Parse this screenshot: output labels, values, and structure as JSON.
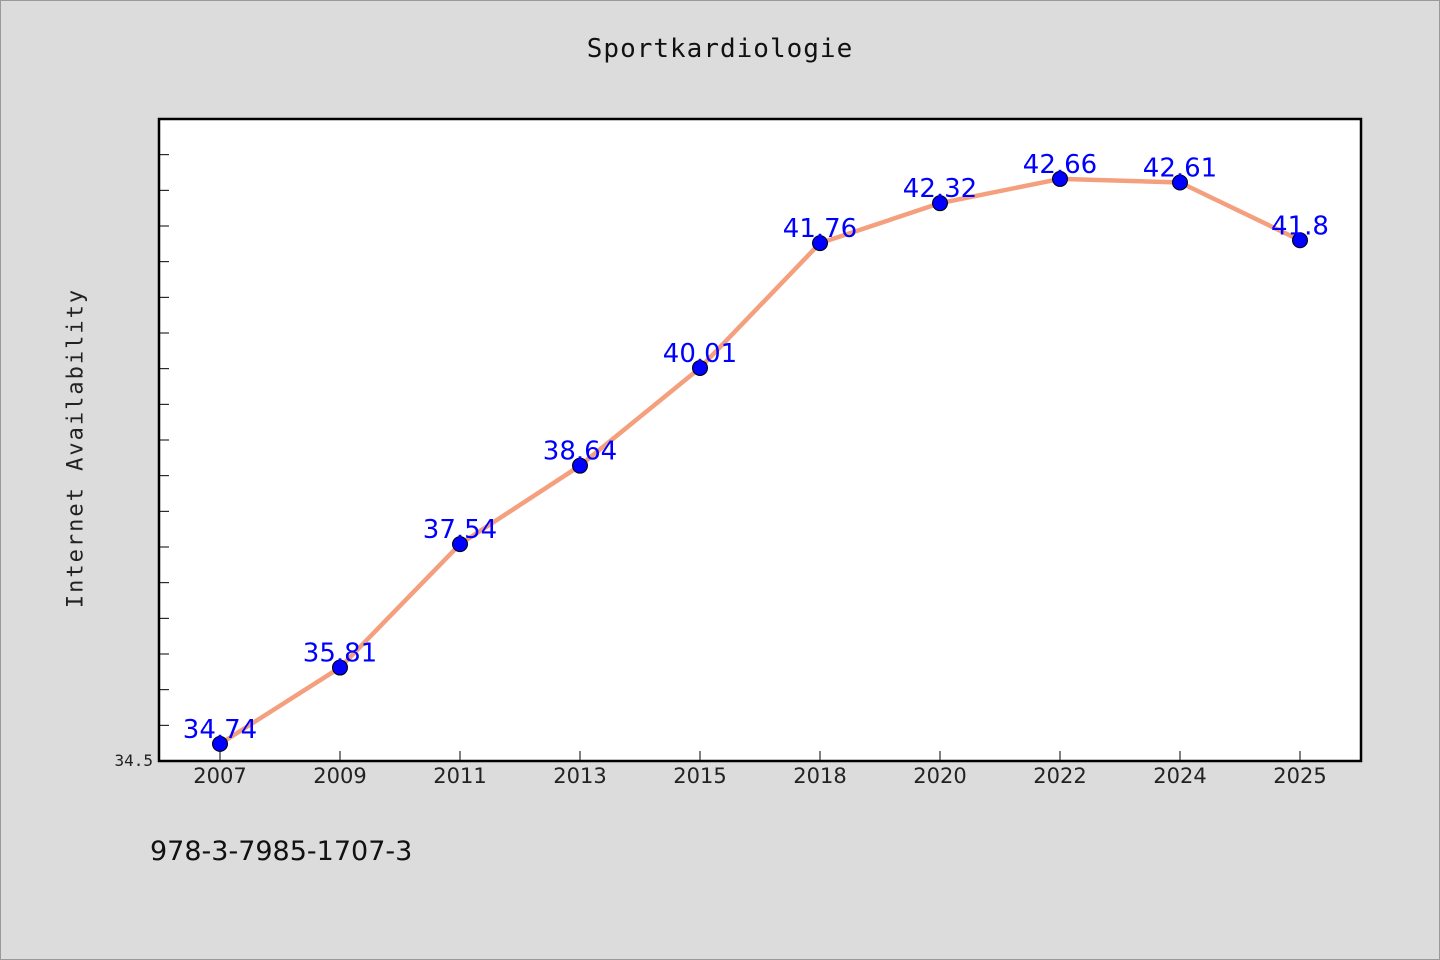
{
  "chart_data": {
    "type": "line",
    "title": "Sportkardiologie",
    "xlabel": "",
    "ylabel": "Internet Availability",
    "categories": [
      "2007",
      "2009",
      "2011",
      "2013",
      "2015",
      "2018",
      "2020",
      "2022",
      "2024",
      "2025"
    ],
    "series": [
      {
        "values": [
          34.74,
          35.81,
          37.54,
          38.64,
          40.01,
          41.76,
          42.32,
          42.66,
          42.61,
          41.8
        ],
        "labels": [
          "34.74",
          "35.81",
          "37.54",
          "38.64",
          "40.01",
          "41.76",
          "42.32",
          "42.66",
          "42.61",
          "41.8"
        ]
      }
    ],
    "ylim": [
      34.5,
      43.5
    ],
    "y_tick_label": "34.5",
    "grid": false,
    "line_color": "#f4a07e",
    "marker_color": "#0000ff",
    "label_color": "#0000ff"
  },
  "caption": "978-3-7985-1707-3"
}
